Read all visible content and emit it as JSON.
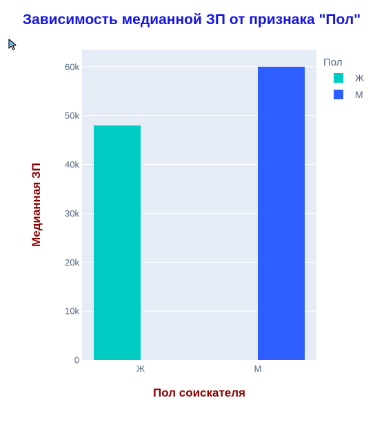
{
  "chart_data": {
    "type": "bar",
    "title": "Зависимость медианной ЗП от признака \"Пол\"",
    "xlabel": "Пол соискателя",
    "ylabel": "Медианная ЗП",
    "categories": [
      "Ж",
      "М"
    ],
    "series": [
      {
        "name": "Ж",
        "category": "Ж",
        "value": 48000,
        "color": "#00CCC4"
      },
      {
        "name": "М",
        "category": "М",
        "value": 60000,
        "color": "#2E5EFF"
      }
    ],
    "legend_title": "Пол",
    "legend_position": "top-right",
    "ylim": [
      0,
      63500
    ],
    "yticks": [
      0,
      10000,
      20000,
      30000,
      40000,
      50000,
      60000
    ],
    "ytick_labels": [
      "0",
      "10k",
      "20k",
      "30k",
      "40k",
      "50k",
      "60k"
    ],
    "grid": true,
    "colors": {
      "title": "#1414E6",
      "axis_title": "#8B0000",
      "plot_background": "#E5ECF6",
      "grid": "#FFFFFF",
      "tick_text": "#506784"
    }
  },
  "cursor_icon": "arrow-cursor-icon"
}
